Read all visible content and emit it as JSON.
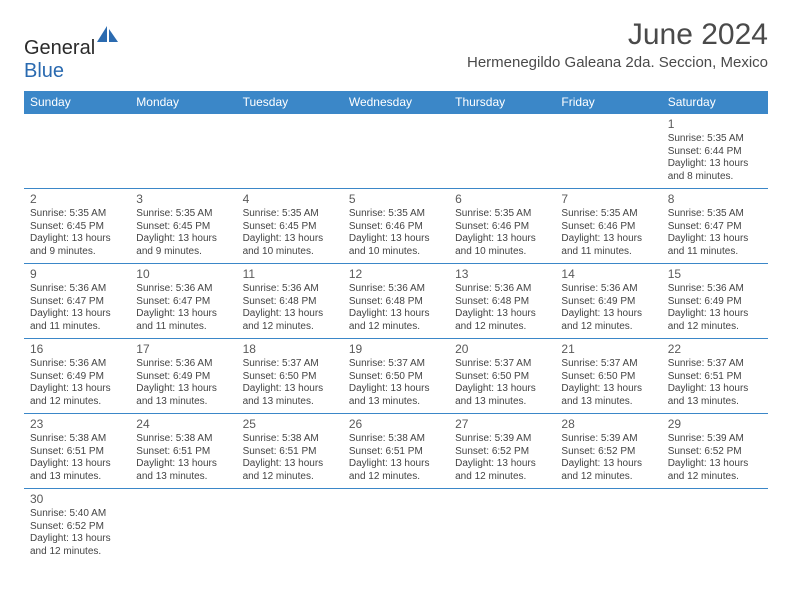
{
  "brand": {
    "part1": "General",
    "part2": "Blue"
  },
  "title": "June 2024",
  "location": "Hermenegildo Galeana 2da. Seccion, Mexico",
  "weekdays": [
    "Sunday",
    "Monday",
    "Tuesday",
    "Wednesday",
    "Thursday",
    "Friday",
    "Saturday"
  ],
  "colors": {
    "header_bg": "#3b87c8",
    "header_text": "#ffffff",
    "border": "#3b87c8",
    "text": "#444444"
  },
  "cells": [
    [
      null,
      null,
      null,
      null,
      null,
      null,
      {
        "d": "1",
        "sr": "5:35 AM",
        "ss": "6:44 PM",
        "dl": "13 hours and 8 minutes."
      }
    ],
    [
      {
        "d": "2",
        "sr": "5:35 AM",
        "ss": "6:45 PM",
        "dl": "13 hours and 9 minutes."
      },
      {
        "d": "3",
        "sr": "5:35 AM",
        "ss": "6:45 PM",
        "dl": "13 hours and 9 minutes."
      },
      {
        "d": "4",
        "sr": "5:35 AM",
        "ss": "6:45 PM",
        "dl": "13 hours and 10 minutes."
      },
      {
        "d": "5",
        "sr": "5:35 AM",
        "ss": "6:46 PM",
        "dl": "13 hours and 10 minutes."
      },
      {
        "d": "6",
        "sr": "5:35 AM",
        "ss": "6:46 PM",
        "dl": "13 hours and 10 minutes."
      },
      {
        "d": "7",
        "sr": "5:35 AM",
        "ss": "6:46 PM",
        "dl": "13 hours and 11 minutes."
      },
      {
        "d": "8",
        "sr": "5:35 AM",
        "ss": "6:47 PM",
        "dl": "13 hours and 11 minutes."
      }
    ],
    [
      {
        "d": "9",
        "sr": "5:36 AM",
        "ss": "6:47 PM",
        "dl": "13 hours and 11 minutes."
      },
      {
        "d": "10",
        "sr": "5:36 AM",
        "ss": "6:47 PM",
        "dl": "13 hours and 11 minutes."
      },
      {
        "d": "11",
        "sr": "5:36 AM",
        "ss": "6:48 PM",
        "dl": "13 hours and 12 minutes."
      },
      {
        "d": "12",
        "sr": "5:36 AM",
        "ss": "6:48 PM",
        "dl": "13 hours and 12 minutes."
      },
      {
        "d": "13",
        "sr": "5:36 AM",
        "ss": "6:48 PM",
        "dl": "13 hours and 12 minutes."
      },
      {
        "d": "14",
        "sr": "5:36 AM",
        "ss": "6:49 PM",
        "dl": "13 hours and 12 minutes."
      },
      {
        "d": "15",
        "sr": "5:36 AM",
        "ss": "6:49 PM",
        "dl": "13 hours and 12 minutes."
      }
    ],
    [
      {
        "d": "16",
        "sr": "5:36 AM",
        "ss": "6:49 PM",
        "dl": "13 hours and 12 minutes."
      },
      {
        "d": "17",
        "sr": "5:36 AM",
        "ss": "6:49 PM",
        "dl": "13 hours and 13 minutes."
      },
      {
        "d": "18",
        "sr": "5:37 AM",
        "ss": "6:50 PM",
        "dl": "13 hours and 13 minutes."
      },
      {
        "d": "19",
        "sr": "5:37 AM",
        "ss": "6:50 PM",
        "dl": "13 hours and 13 minutes."
      },
      {
        "d": "20",
        "sr": "5:37 AM",
        "ss": "6:50 PM",
        "dl": "13 hours and 13 minutes."
      },
      {
        "d": "21",
        "sr": "5:37 AM",
        "ss": "6:50 PM",
        "dl": "13 hours and 13 minutes."
      },
      {
        "d": "22",
        "sr": "5:37 AM",
        "ss": "6:51 PM",
        "dl": "13 hours and 13 minutes."
      }
    ],
    [
      {
        "d": "23",
        "sr": "5:38 AM",
        "ss": "6:51 PM",
        "dl": "13 hours and 13 minutes."
      },
      {
        "d": "24",
        "sr": "5:38 AM",
        "ss": "6:51 PM",
        "dl": "13 hours and 13 minutes."
      },
      {
        "d": "25",
        "sr": "5:38 AM",
        "ss": "6:51 PM",
        "dl": "13 hours and 12 minutes."
      },
      {
        "d": "26",
        "sr": "5:38 AM",
        "ss": "6:51 PM",
        "dl": "13 hours and 12 minutes."
      },
      {
        "d": "27",
        "sr": "5:39 AM",
        "ss": "6:52 PM",
        "dl": "13 hours and 12 minutes."
      },
      {
        "d": "28",
        "sr": "5:39 AM",
        "ss": "6:52 PM",
        "dl": "13 hours and 12 minutes."
      },
      {
        "d": "29",
        "sr": "5:39 AM",
        "ss": "6:52 PM",
        "dl": "13 hours and 12 minutes."
      }
    ],
    [
      {
        "d": "30",
        "sr": "5:40 AM",
        "ss": "6:52 PM",
        "dl": "13 hours and 12 minutes."
      },
      null,
      null,
      null,
      null,
      null,
      null
    ]
  ],
  "labels": {
    "sunrise": "Sunrise: ",
    "sunset": "Sunset: ",
    "daylight": "Daylight: "
  }
}
